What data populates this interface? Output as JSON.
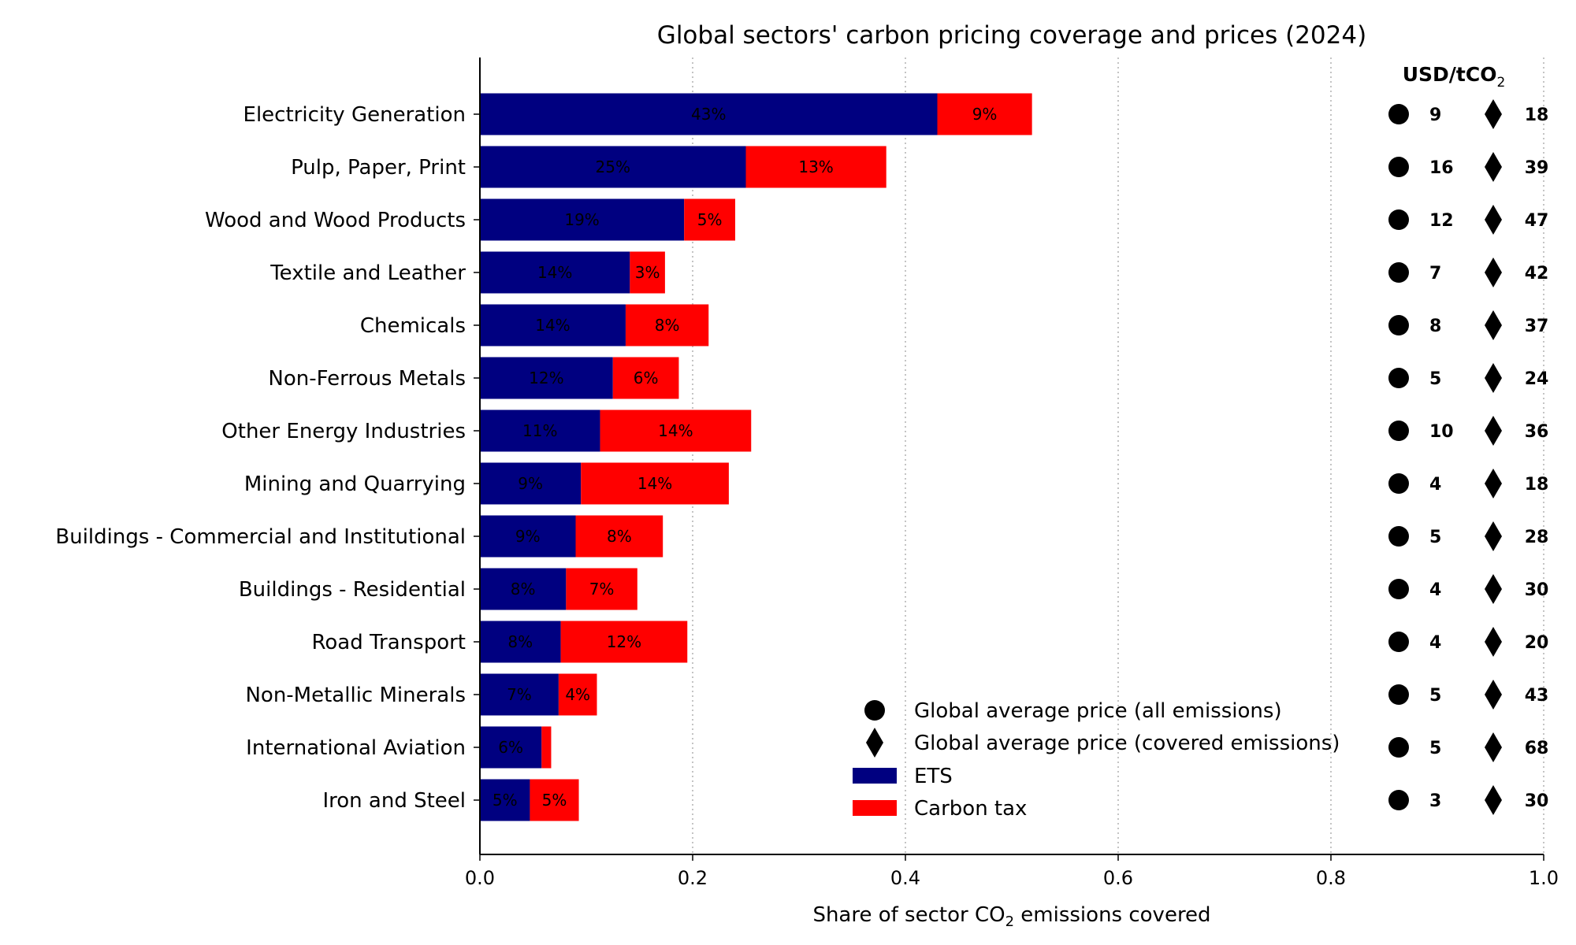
{
  "chart_data": {
    "type": "bar",
    "orientation": "horizontal",
    "stacked": true,
    "title": "Global sectors' carbon pricing coverage and prices (2024)",
    "xlabel": {
      "prefix": "Share of sector CO",
      "sub": "2",
      "suffix": " emissions covered"
    },
    "xlim": [
      0,
      1
    ],
    "xticks": [
      "0.0",
      "0.2",
      "0.4",
      "0.6",
      "0.8",
      "1.0"
    ],
    "grid": "vertical dotted",
    "price_header": {
      "text": "USD/tCO",
      "sub": "2"
    },
    "categories": [
      "Electricity Generation",
      "Pulp, Paper, Print",
      "Wood and Wood Products",
      "Textile and Leather",
      "Chemicals",
      "Non-Ferrous Metals",
      "Other Energy Industries",
      "Mining and Quarrying",
      "Buildings - Commercial and Institutional",
      "Buildings - Residential",
      "Road Transport",
      "Non-Metallic Minerals",
      "International Aviation",
      "Iron and Steel"
    ],
    "series": [
      {
        "name": "ETS",
        "color": "#000080",
        "values": [
          0.43,
          0.25,
          0.192,
          0.141,
          0.137,
          0.125,
          0.113,
          0.095,
          0.09,
          0.081,
          0.076,
          0.074,
          0.058,
          0.047
        ],
        "labels": [
          "43%",
          "25%",
          "19%",
          "14%",
          "14%",
          "12%",
          "11%",
          "9%",
          "9%",
          "8%",
          "8%",
          "7%",
          "6%",
          "5%"
        ]
      },
      {
        "name": "Carbon tax",
        "color": "#ff0000",
        "values": [
          0.089,
          0.132,
          0.048,
          0.033,
          0.078,
          0.062,
          0.142,
          0.139,
          0.082,
          0.067,
          0.119,
          0.036,
          0.009,
          0.046
        ],
        "labels": [
          "9%",
          "13%",
          "5%",
          "3%",
          "8%",
          "6%",
          "14%",
          "14%",
          "8%",
          "7%",
          "12%",
          "4%",
          "",
          "5%"
        ]
      }
    ],
    "prices": {
      "all_emissions": [
        "9",
        "16",
        "12",
        "7",
        "8",
        "5",
        "10",
        "4",
        "5",
        "4",
        "4",
        "5",
        "5",
        "3"
      ],
      "covered_emissions": [
        "18",
        "39",
        "47",
        "42",
        "37",
        "24",
        "36",
        "18",
        "28",
        "30",
        "20",
        "43",
        "68",
        "30"
      ]
    },
    "legend": {
      "position": "lower-center-right",
      "entries": [
        {
          "label": "Global average price (all emissions)",
          "marker": "circle"
        },
        {
          "label": "Global average price (covered emissions)",
          "marker": "diamond"
        },
        {
          "label": "ETS",
          "marker": "bar",
          "color": "#000080"
        },
        {
          "label": "Carbon tax",
          "marker": "bar",
          "color": "#ff0000"
        }
      ]
    }
  }
}
